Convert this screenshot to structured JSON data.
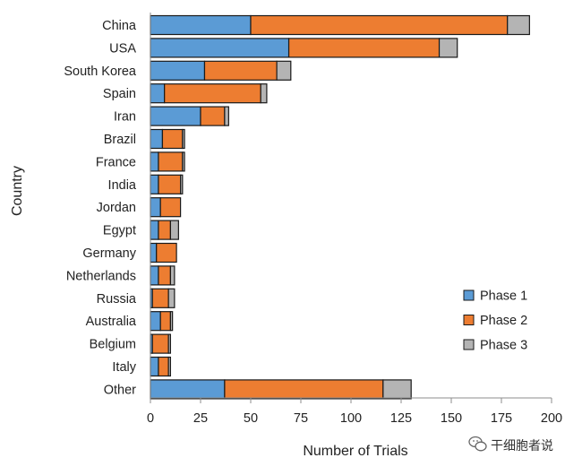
{
  "chart_data": {
    "type": "bar",
    "orientation": "horizontal",
    "stacked": true,
    "categories": [
      "China",
      "USA",
      "South Korea",
      "Spain",
      "Iran",
      "Brazil",
      "France",
      "India",
      "Jordan",
      "Egypt",
      "Germany",
      "Netherlands",
      "Russia",
      "Australia",
      "Belgium",
      "Italy",
      "Other"
    ],
    "series": [
      {
        "name": "Phase 1",
        "color": "#5b9bd5",
        "values": [
          50,
          69,
          27,
          7,
          25,
          6,
          4,
          4,
          5,
          4,
          3,
          4,
          1,
          5,
          1,
          4,
          37
        ]
      },
      {
        "name": "Phase 2",
        "color": "#ed7d31",
        "values": [
          128,
          75,
          36,
          48,
          12,
          10,
          12,
          11,
          10,
          6,
          10,
          6,
          8,
          5,
          8,
          5,
          79
        ]
      },
      {
        "name": "Phase 3",
        "color": "#b4b4b4",
        "values": [
          11,
          9,
          7,
          3,
          2,
          1,
          1,
          1,
          0,
          4,
          0,
          2,
          3,
          1,
          1,
          1,
          14
        ]
      }
    ],
    "xlabel": "Number of Trials",
    "ylabel": "Country",
    "xlim": [
      0,
      200
    ],
    "xticks": [
      0,
      25,
      50,
      75,
      100,
      125,
      150,
      175,
      200
    ],
    "grid": false,
    "legend": "bottom-right"
  },
  "watermark": {
    "text": "干细胞者说",
    "icon": "wechat-icon"
  }
}
